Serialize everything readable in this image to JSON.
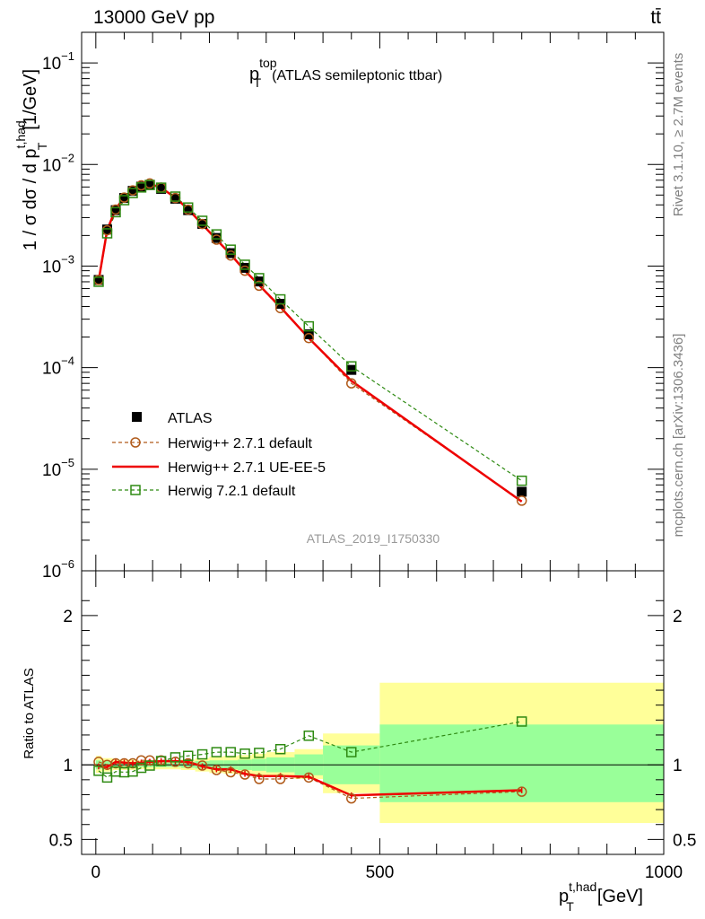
{
  "header": {
    "energy_label": "13000 GeV pp",
    "process_label": "tt̄"
  },
  "side_labels": {
    "rivet": "Rivet 3.1.10, ≥ 2.7M events",
    "mcplots": "mcplots.cern.ch [arXiv:1306.3436]"
  },
  "chart_data": {
    "type": "line",
    "title_main": "p",
    "title_sup": "top",
    "title_sub": "T",
    "title_rest": "(ATLAS semileptonic ttbar)",
    "analysis_label": "ATLAS_2019_I1750330",
    "ylabel": "1 / σ dσ / d p_T^{t,had} [1/GeV]",
    "ratio_ylabel": "Ratio to ATLAS",
    "xlabel": "p_T^{t,had} [GeV]",
    "xlim": [
      -25,
      1000
    ],
    "ylim": [
      1e-06,
      0.2
    ],
    "yscale": "log",
    "ratio_ylim": [
      0.4,
      2.3
    ],
    "x_ticks": [
      0,
      500,
      1000
    ],
    "ratio_ticks": [
      0.5,
      1,
      2
    ],
    "legend_position": "center-left",
    "colors": {
      "data": "#000000",
      "herwigpp_default": "#b05a1a",
      "herwigpp_ueee5": "#ee0000",
      "herwig72": "#2e8a12",
      "band_inner": "#99ff99",
      "band_outer": "#ffff99"
    },
    "x": [
      5,
      20,
      35,
      50,
      65,
      80,
      95,
      115,
      140,
      162.5,
      187.5,
      212.5,
      237.5,
      262.5,
      287.5,
      325,
      375,
      450,
      750
    ],
    "bin_edges": [
      0,
      10,
      30,
      40,
      60,
      70,
      90,
      100,
      130,
      150,
      175,
      200,
      225,
      250,
      275,
      300,
      350,
      400,
      500,
      1000
    ],
    "series": [
      {
        "name": "ATLAS",
        "style": "data",
        "values": [
          0.00073,
          0.00229,
          0.00355,
          0.00468,
          0.0055,
          0.00605,
          0.0063,
          0.00575,
          0.0046,
          0.00355,
          0.0026,
          0.00189,
          0.00134,
          0.00096,
          0.000705,
          0.000425,
          0.000213,
          9.5e-05,
          6e-06
        ]
      },
      {
        "name": "Herwig++ 2.7.1 default",
        "style": "dashed-circle",
        "values": [
          0.00073,
          0.00225,
          0.0036,
          0.00472,
          0.00556,
          0.00623,
          0.0065,
          0.00593,
          0.00467,
          0.00359,
          0.00259,
          0.00182,
          0.00127,
          0.0009,
          0.00064,
          0.000385,
          0.000195,
          7e-05,
          4.9e-06
        ]
      },
      {
        "name": "Herwig++ 2.7.1 UE-EE-5",
        "style": "solid-line",
        "values": [
          0.00072,
          0.00227,
          0.00364,
          0.00475,
          0.00555,
          0.00615,
          0.00645,
          0.00591,
          0.00471,
          0.00363,
          0.00258,
          0.00182,
          0.0013,
          0.0009,
          0.00065,
          0.000395,
          0.000195,
          7.4e-05,
          4.8e-06
        ]
      },
      {
        "name": "Herwig 7.2.1 default",
        "style": "dashed-square",
        "values": [
          0.0007,
          0.0021,
          0.00339,
          0.00445,
          0.00523,
          0.00594,
          0.00628,
          0.00591,
          0.00483,
          0.00377,
          0.00279,
          0.00205,
          0.00145,
          0.00103,
          0.00076,
          0.00047,
          0.000255,
          0.000103,
          7.7e-06
        ]
      }
    ],
    "ratios": {
      "Herwig++ 2.7.1 default": [
        1.02,
        1.0,
        1.01,
        1.01,
        1.01,
        1.03,
        1.03,
        1.03,
        1.02,
        1.01,
        0.995,
        0.965,
        0.95,
        0.935,
        0.905,
        0.905,
        0.915,
        0.775,
        0.82
      ],
      "Herwig++ 2.7.1 UE-EE-5": [
        0.99,
        0.985,
        1.02,
        1.015,
        1.01,
        1.015,
        1.02,
        1.025,
        1.025,
        1.02,
        0.99,
        0.97,
        0.97,
        0.94,
        0.925,
        0.925,
        0.92,
        0.795,
        0.83
      ],
      "Herwig 7.2.1 default": [
        0.96,
        0.915,
        0.955,
        0.95,
        0.955,
        0.98,
        0.995,
        1.025,
        1.05,
        1.06,
        1.07,
        1.085,
        1.085,
        1.075,
        1.08,
        1.105,
        1.195,
        1.085,
        1.29
      ]
    },
    "ratio_bands": {
      "inner_lo": [
        0.97,
        0.975,
        0.98,
        0.98,
        0.98,
        0.985,
        0.985,
        0.985,
        0.985,
        0.98,
        0.975,
        0.97,
        0.97,
        0.965,
        0.96,
        0.95,
        0.93,
        0.87,
        0.75
      ],
      "inner_hi": [
        1.03,
        1.025,
        1.02,
        1.02,
        1.02,
        1.015,
        1.015,
        1.015,
        1.015,
        1.02,
        1.025,
        1.03,
        1.03,
        1.035,
        1.04,
        1.05,
        1.07,
        1.13,
        1.27
      ],
      "outer_lo": [
        0.945,
        0.955,
        0.965,
        0.965,
        0.965,
        0.97,
        0.97,
        0.97,
        0.97,
        0.965,
        0.955,
        0.945,
        0.94,
        0.935,
        0.925,
        0.92,
        0.905,
        0.81,
        0.61
      ],
      "outer_hi": [
        1.06,
        1.045,
        1.035,
        1.035,
        1.035,
        1.03,
        1.03,
        1.03,
        1.03,
        1.035,
        1.045,
        1.055,
        1.06,
        1.065,
        1.075,
        1.085,
        1.105,
        1.21,
        1.55
      ]
    }
  }
}
